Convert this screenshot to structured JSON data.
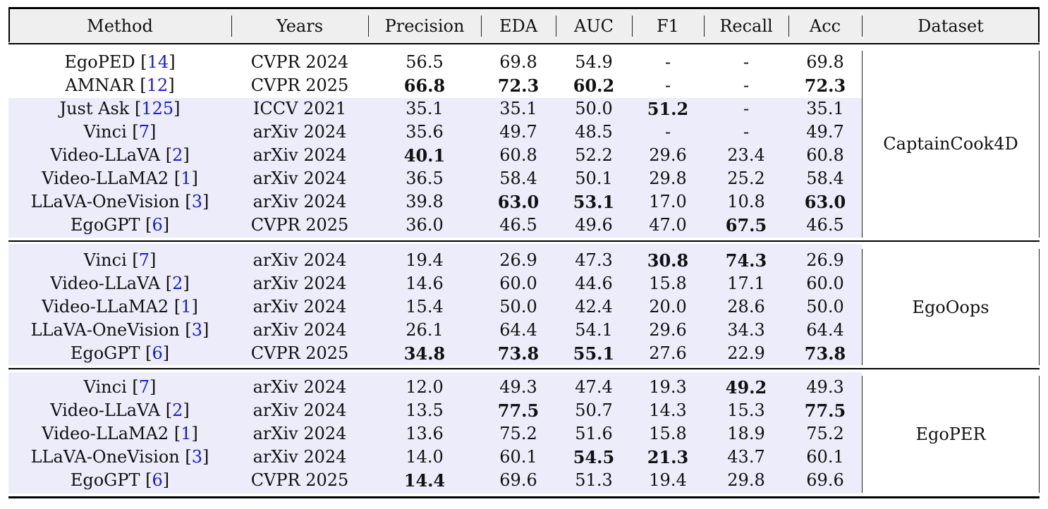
{
  "table": {
    "headers": [
      "Method",
      "Years",
      "Precision",
      "EDA",
      "AUC",
      "F1",
      "Recall",
      "Acc",
      "Dataset"
    ],
    "groups": [
      {
        "dataset": "CaptainCook4D",
        "rows": [
          {
            "name": "EgoPED",
            "ref": "14",
            "year": "CVPR 2024",
            "precision": "56.5",
            "eda": "69.8",
            "auc": "54.9",
            "f1": "-",
            "recall": "-",
            "acc": "69.8",
            "shaded": false,
            "bold": []
          },
          {
            "name": "AMNAR",
            "ref": "12",
            "year": "CVPR 2025",
            "precision": "66.8",
            "eda": "72.3",
            "auc": "60.2",
            "f1": "-",
            "recall": "-",
            "acc": "72.3",
            "shaded": false,
            "bold": [
              "precision",
              "eda",
              "auc",
              "acc"
            ]
          },
          {
            "name": "Just Ask",
            "ref": "125",
            "year": "ICCV 2021",
            "precision": "35.1",
            "eda": "35.1",
            "auc": "50.0",
            "f1": "51.2",
            "recall": "-",
            "acc": "35.1",
            "shaded": true,
            "bold": [
              "f1"
            ]
          },
          {
            "name": "Vinci",
            "ref": "7",
            "year": "arXiv 2024",
            "precision": "35.6",
            "eda": "49.7",
            "auc": "48.5",
            "f1": "-",
            "recall": "-",
            "acc": "49.7",
            "shaded": true,
            "bold": []
          },
          {
            "name": "Video-LLaVA",
            "ref": "2",
            "year": "arXiv 2024",
            "precision": "40.1",
            "eda": "60.8",
            "auc": "52.2",
            "f1": "29.6",
            "recall": "23.4",
            "acc": "60.8",
            "shaded": true,
            "bold": [
              "precision"
            ]
          },
          {
            "name": "Video-LLaMA2",
            "ref": "1",
            "year": "arXiv 2024",
            "precision": "36.5",
            "eda": "58.4",
            "auc": "50.1",
            "f1": "29.8",
            "recall": "25.2",
            "acc": "58.4",
            "shaded": true,
            "bold": []
          },
          {
            "name": "LLaVA-OneVision",
            "ref": "3",
            "year": "arXiv 2024",
            "precision": "39.8",
            "eda": "63.0",
            "auc": "53.1",
            "f1": "17.0",
            "recall": "10.8",
            "acc": "63.0",
            "shaded": true,
            "bold": [
              "eda",
              "auc",
              "acc"
            ]
          },
          {
            "name": "EgoGPT",
            "ref": "6",
            "year": "CVPR 2025",
            "precision": "36.0",
            "eda": "46.5",
            "auc": "49.6",
            "f1": "47.0",
            "recall": "67.5",
            "acc": "46.5",
            "shaded": true,
            "bold": [
              "recall"
            ]
          }
        ]
      },
      {
        "dataset": "EgoOops",
        "rows": [
          {
            "name": "Vinci",
            "ref": "7",
            "year": "arXiv 2024",
            "precision": "19.4",
            "eda": "26.9",
            "auc": "47.3",
            "f1": "30.8",
            "recall": "74.3",
            "acc": "26.9",
            "shaded": true,
            "bold": [
              "f1",
              "recall"
            ]
          },
          {
            "name": "Video-LLaVA",
            "ref": "2",
            "year": "arXiv 2024",
            "precision": "14.6",
            "eda": "60.0",
            "auc": "44.6",
            "f1": "15.8",
            "recall": "17.1",
            "acc": "60.0",
            "shaded": true,
            "bold": []
          },
          {
            "name": "Video-LLaMA2",
            "ref": "1",
            "year": "arXiv 2024",
            "precision": "15.4",
            "eda": "50.0",
            "auc": "42.4",
            "f1": "20.0",
            "recall": "28.6",
            "acc": "50.0",
            "shaded": true,
            "bold": []
          },
          {
            "name": "LLaVA-OneVision",
            "ref": "3",
            "year": "arXiv 2024",
            "precision": "26.1",
            "eda": "64.4",
            "auc": "54.1",
            "f1": "29.6",
            "recall": "34.3",
            "acc": "64.4",
            "shaded": true,
            "bold": []
          },
          {
            "name": "EgoGPT",
            "ref": "6",
            "year": "CVPR 2025",
            "precision": "34.8",
            "eda": "73.8",
            "auc": "55.1",
            "f1": "27.6",
            "recall": "22.9",
            "acc": "73.8",
            "shaded": true,
            "bold": [
              "precision",
              "eda",
              "auc",
              "acc"
            ]
          }
        ]
      },
      {
        "dataset": "EgoPER",
        "rows": [
          {
            "name": "Vinci",
            "ref": "7",
            "year": "arXiv 2024",
            "precision": "12.0",
            "eda": "49.3",
            "auc": "47.4",
            "f1": "19.3",
            "recall": "49.2",
            "acc": "49.3",
            "shaded": true,
            "bold": [
              "recall"
            ]
          },
          {
            "name": "Video-LLaVA",
            "ref": "2",
            "year": "arXiv 2024",
            "precision": "13.5",
            "eda": "77.5",
            "auc": "50.7",
            "f1": "14.3",
            "recall": "15.3",
            "acc": "77.5",
            "shaded": true,
            "bold": [
              "eda",
              "acc"
            ]
          },
          {
            "name": "Video-LLaMA2",
            "ref": "1",
            "year": "arXiv 2024",
            "precision": "13.6",
            "eda": "75.2",
            "auc": "51.6",
            "f1": "15.8",
            "recall": "18.9",
            "acc": "75.2",
            "shaded": true,
            "bold": []
          },
          {
            "name": "LLaVA-OneVision",
            "ref": "3",
            "year": "arXiv 2024",
            "precision": "14.0",
            "eda": "60.1",
            "auc": "54.5",
            "f1": "21.3",
            "recall": "43.7",
            "acc": "60.1",
            "shaded": true,
            "bold": [
              "auc",
              "f1"
            ]
          },
          {
            "name": "EgoGPT",
            "ref": "6",
            "year": "CVPR 2025",
            "precision": "14.4",
            "eda": "69.6",
            "auc": "51.3",
            "f1": "19.4",
            "recall": "29.8",
            "acc": "69.6",
            "shaded": true,
            "bold": [
              "precision"
            ]
          }
        ]
      }
    ]
  },
  "colors": {
    "band": "#ececfb",
    "header_bg": "#efefef",
    "citation": "#1a1ad8"
  }
}
